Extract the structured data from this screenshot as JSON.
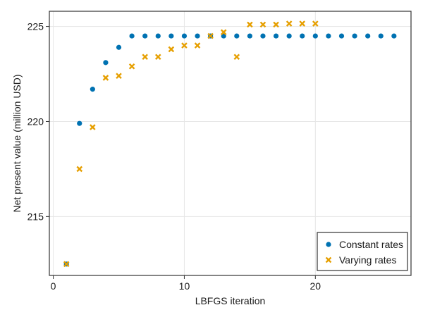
{
  "chart_data": {
    "type": "scatter",
    "xlabel": "LBFGS iteration",
    "ylabel": "Net present value (million USD)",
    "xlim": [
      -0.3,
      27.3
    ],
    "ylim": [
      211.9,
      225.8
    ],
    "xticks": [
      0,
      10,
      20
    ],
    "yticks": [
      215,
      220,
      225
    ],
    "grid": true,
    "legend_position": "bottom-right",
    "series": [
      {
        "name": "Constant rates",
        "marker": "circle",
        "color": "#0072B2",
        "x": [
          1,
          2,
          3,
          4,
          5,
          6,
          7,
          8,
          9,
          10,
          11,
          12,
          13,
          14,
          15,
          16,
          17,
          18,
          19,
          20,
          21,
          22,
          23,
          24,
          25,
          26
        ],
        "y": [
          212.5,
          219.9,
          221.7,
          223.1,
          223.9,
          224.5,
          224.5,
          224.5,
          224.5,
          224.5,
          224.5,
          224.5,
          224.5,
          224.5,
          224.5,
          224.5,
          224.5,
          224.5,
          224.5,
          224.5,
          224.5,
          224.5,
          224.5,
          224.5,
          224.5,
          224.5
        ]
      },
      {
        "name": "Varying rates",
        "marker": "x",
        "color": "#E69F00",
        "x": [
          1,
          2,
          3,
          4,
          5,
          6,
          7,
          8,
          9,
          10,
          11,
          12,
          13,
          14,
          15,
          16,
          17,
          18,
          19,
          20
        ],
        "y": [
          212.5,
          217.5,
          219.7,
          222.3,
          222.4,
          222.9,
          223.4,
          223.4,
          223.8,
          224.0,
          224.0,
          224.5,
          224.7,
          223.4,
          225.1,
          225.1,
          225.1,
          225.15,
          225.15,
          225.15
        ]
      }
    ]
  }
}
